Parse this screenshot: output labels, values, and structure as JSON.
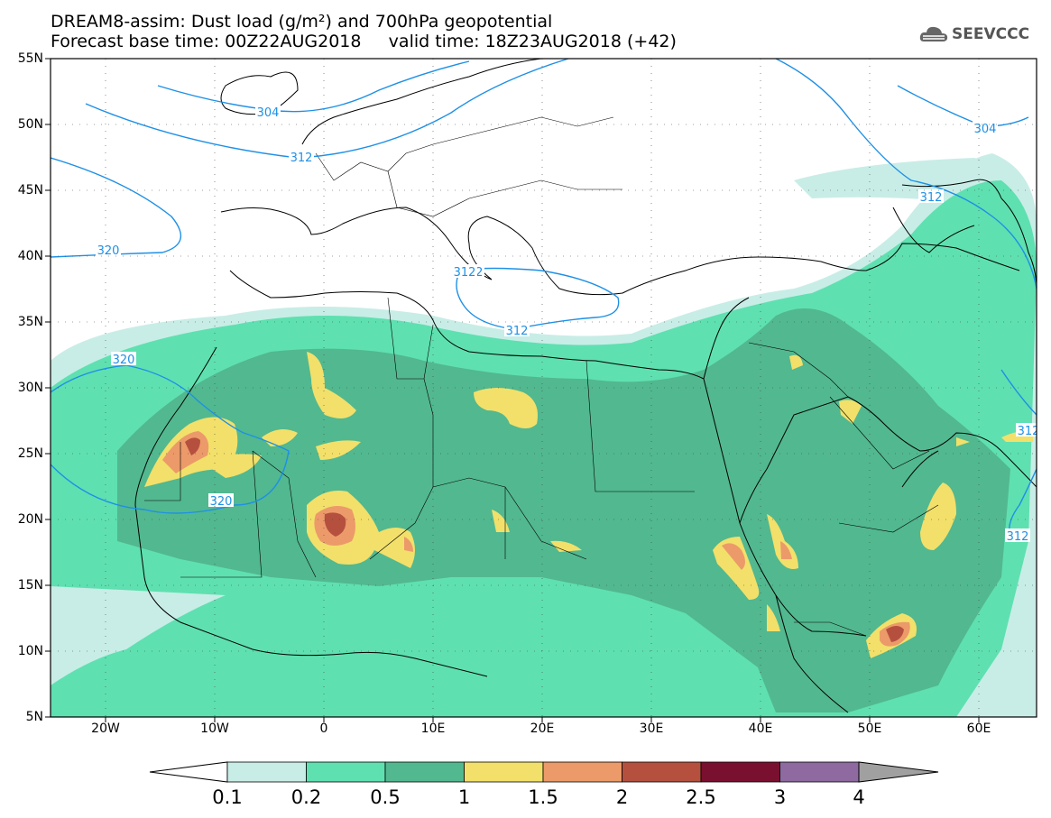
{
  "header": {
    "title_line1": "DREAM8-assim: Dust load (g/m²) and 700hPa geopotential",
    "title_line2": "Forecast base time: 00Z22AUG2018     valid time: 18Z23AUG2018 (+42)",
    "logo_text": "SEEVCCC"
  },
  "map": {
    "lat_labels": [
      "55N",
      "50N",
      "45N",
      "40N",
      "35N",
      "30N",
      "25N",
      "20N",
      "15N",
      "10N",
      "5N"
    ],
    "lon_labels": [
      "20W",
      "10W",
      "0",
      "10E",
      "20E",
      "30E",
      "40E",
      "50E",
      "60E"
    ],
    "contour_labels": [
      "312",
      "304",
      "312",
      "304",
      "312",
      "320",
      "312",
      "312",
      "320",
      "320",
      "312",
      "312",
      "312"
    ],
    "colors": {
      "contour": "#1e90e6",
      "coast": "#000000"
    }
  },
  "legend": {
    "labels": [
      "0.1",
      "0.2",
      "0.5",
      "1",
      "1.5",
      "2",
      "2.5",
      "3",
      "4"
    ],
    "colors": [
      "#c8ede6",
      "#5fe0b0",
      "#52b88f",
      "#f2e06a",
      "#ec9a6a",
      "#b5503e",
      "#7a1030",
      "#8e6aa0"
    ],
    "lower_arrow": "#ffffff",
    "upper_arrow": "#a0a0a0"
  }
}
